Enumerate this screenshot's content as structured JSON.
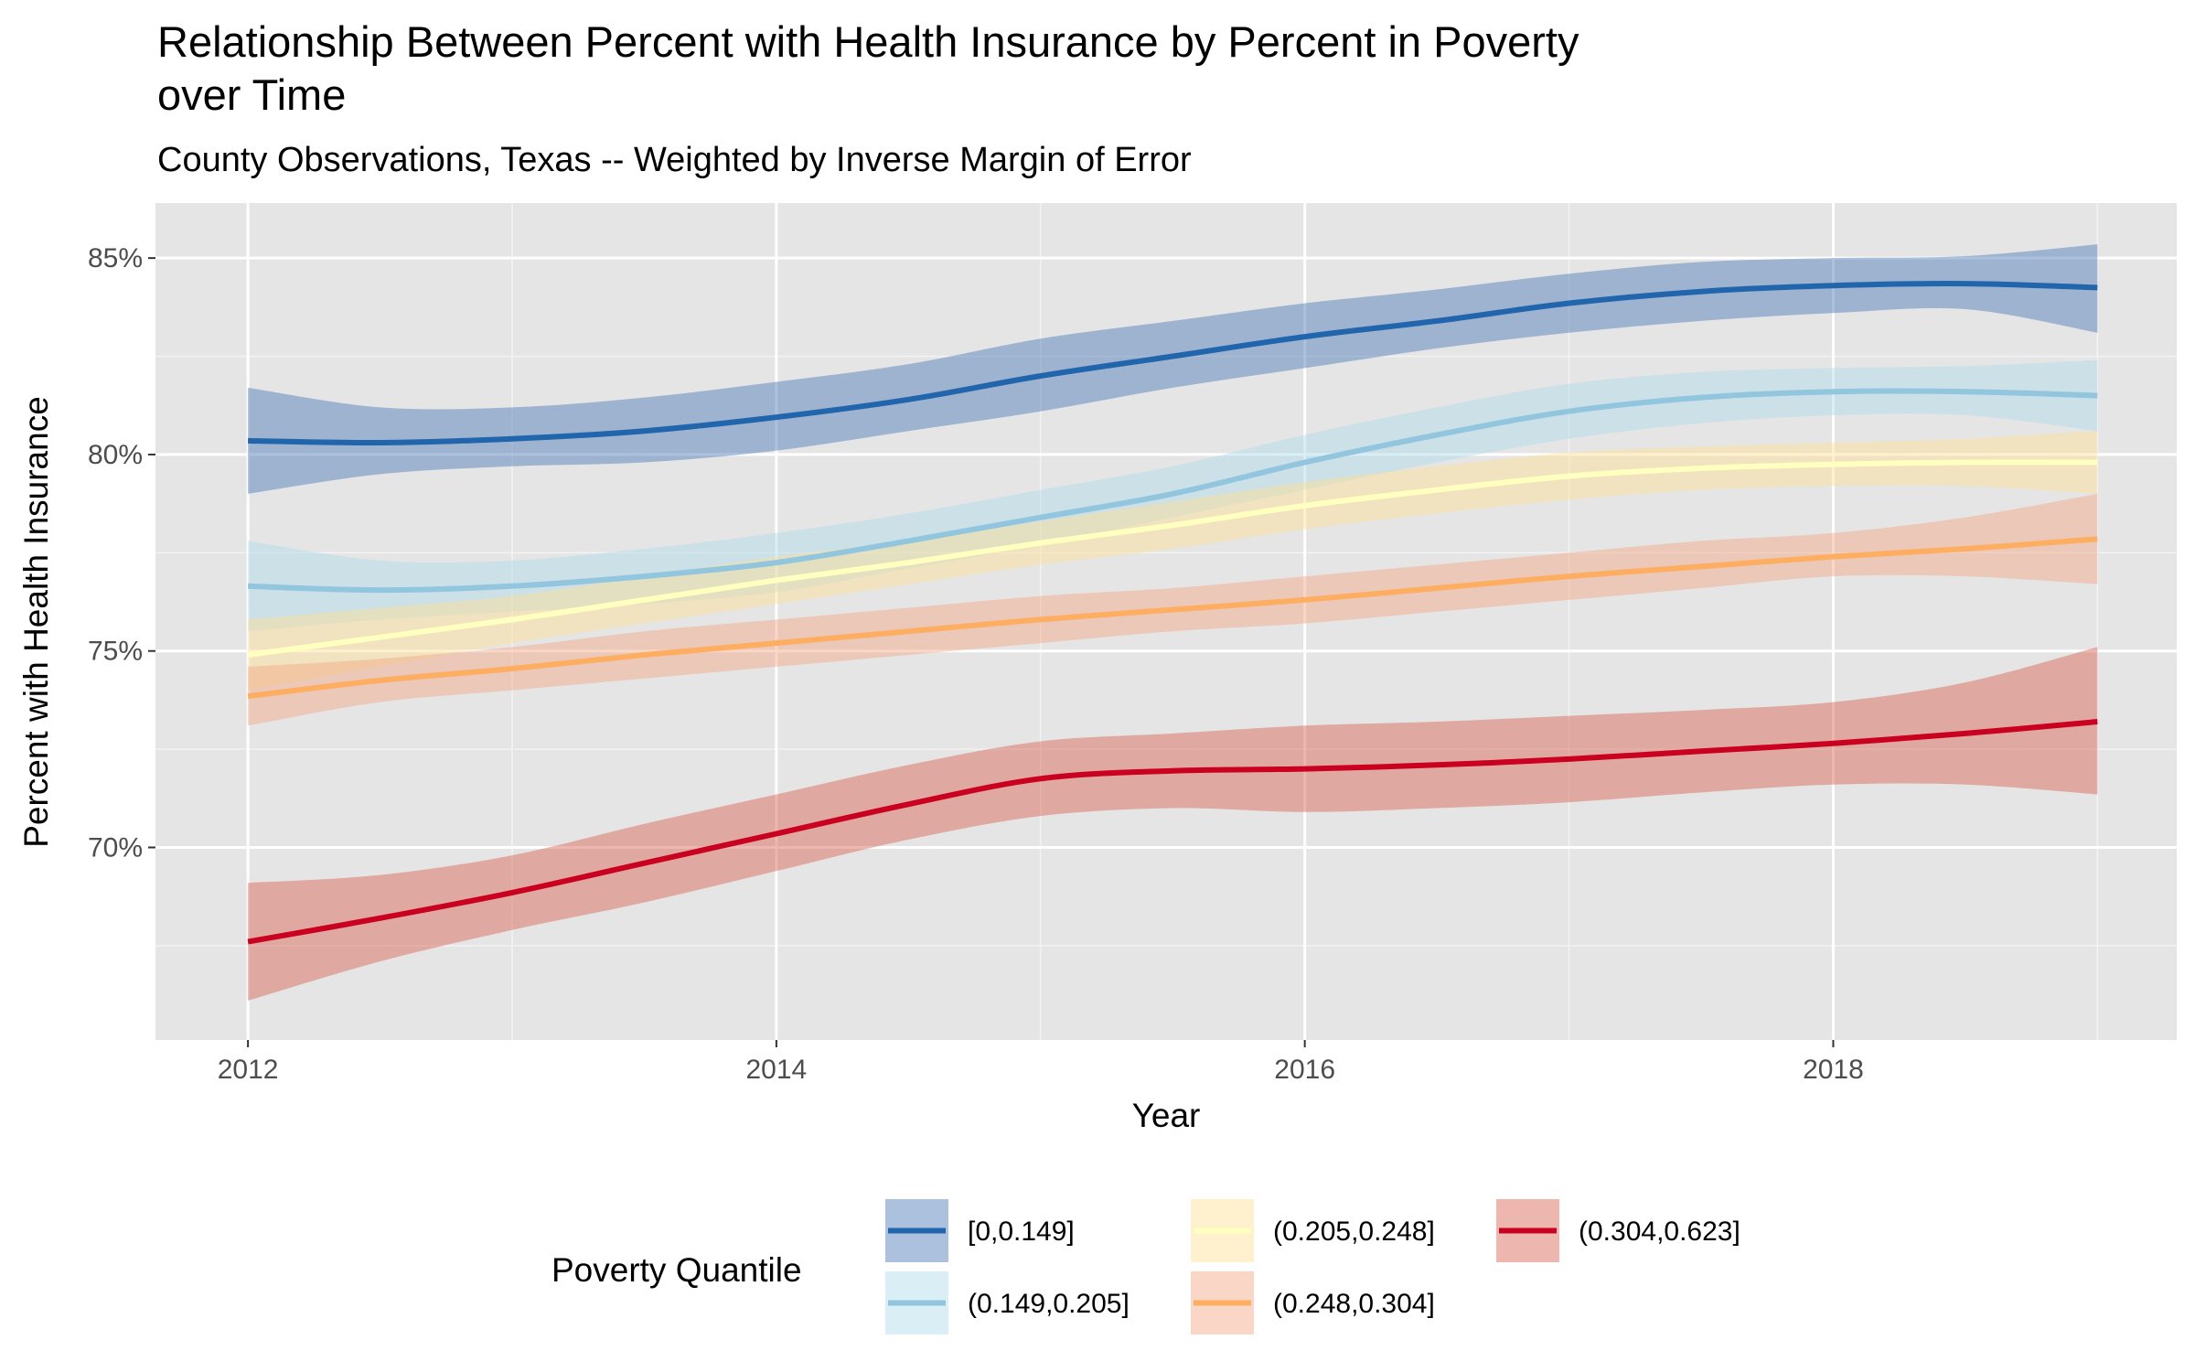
{
  "chart_data": {
    "type": "line",
    "title": "Relationship Between Percent with Health Insurance by Percent in Poverty over Time",
    "title_lines": [
      "Relationship Between Percent with Health Insurance by Percent in Poverty",
      "over Time"
    ],
    "subtitle": "County Observations, Texas -- Weighted by Inverse Margin of Error",
    "xlabel": "Year",
    "ylabel": "Percent with Health Insurance",
    "xlim": [
      2011.65,
      2019.3
    ],
    "ylim": [
      65.1,
      86.4
    ],
    "x_ticks": [
      2012,
      2014,
      2016,
      2018
    ],
    "x_tick_labels": [
      "2012",
      "2014",
      "2016",
      "2018"
    ],
    "y_ticks": [
      70,
      75,
      80,
      85
    ],
    "y_tick_labels": [
      "70%",
      "75%",
      "80%",
      "85%"
    ],
    "grid": true,
    "legend": {
      "title": "Poverty Quantile",
      "position": "bottom"
    },
    "x": [
      2012,
      2012.5,
      2013,
      2013.5,
      2014,
      2014.5,
      2015,
      2015.5,
      2016,
      2016.5,
      2017,
      2017.5,
      2018,
      2018.5,
      2019
    ],
    "series": [
      {
        "name": "[0,0.149]",
        "color": "#2166ac",
        "band_color": "#4575b4",
        "y": [
          80.35,
          80.3,
          80.4,
          80.6,
          80.95,
          81.4,
          82.0,
          82.5,
          83.0,
          83.4,
          83.85,
          84.15,
          84.3,
          84.35,
          84.25
        ],
        "lower": [
          79.0,
          79.5,
          79.7,
          79.8,
          80.1,
          80.6,
          81.1,
          81.7,
          82.2,
          82.7,
          83.1,
          83.4,
          83.6,
          83.7,
          83.1
        ],
        "upper": [
          81.7,
          81.2,
          81.2,
          81.45,
          81.85,
          82.3,
          82.95,
          83.4,
          83.85,
          84.2,
          84.6,
          84.9,
          85.0,
          85.05,
          85.35
        ]
      },
      {
        "name": "(0.149,0.205]",
        "color": "#92c5de",
        "band_color": "#abd9e9",
        "y": [
          76.65,
          76.55,
          76.65,
          76.9,
          77.25,
          77.8,
          78.4,
          79.0,
          79.8,
          80.5,
          81.1,
          81.45,
          81.6,
          81.6,
          81.5
        ],
        "lower": [
          75.5,
          75.8,
          76.0,
          76.2,
          76.5,
          77.1,
          77.7,
          78.4,
          79.1,
          79.8,
          80.4,
          80.8,
          81.0,
          81.0,
          80.6
        ],
        "upper": [
          77.8,
          77.3,
          77.3,
          77.6,
          78.0,
          78.5,
          79.1,
          79.7,
          80.5,
          81.2,
          81.8,
          82.1,
          82.2,
          82.25,
          82.4
        ]
      },
      {
        "name": "(0.205,0.248]",
        "color": "#ffffbf",
        "band_color": "#fee090",
        "y": [
          74.9,
          75.35,
          75.8,
          76.3,
          76.8,
          77.25,
          77.75,
          78.2,
          78.7,
          79.1,
          79.45,
          79.65,
          79.75,
          79.8,
          79.8
        ],
        "lower": [
          74.0,
          74.6,
          75.2,
          75.7,
          76.2,
          76.7,
          77.2,
          77.6,
          78.1,
          78.5,
          78.85,
          79.1,
          79.2,
          79.2,
          79.0
        ],
        "upper": [
          75.8,
          76.1,
          76.4,
          76.9,
          77.4,
          77.8,
          78.3,
          78.8,
          79.3,
          79.7,
          80.05,
          80.2,
          80.3,
          80.4,
          80.6
        ]
      },
      {
        "name": "(0.248,0.304]",
        "color": "#fdae61",
        "band_color": "#f4a582",
        "y": [
          73.85,
          74.25,
          74.55,
          74.9,
          75.2,
          75.5,
          75.8,
          76.05,
          76.3,
          76.6,
          76.9,
          77.15,
          77.4,
          77.6,
          77.85
        ],
        "lower": [
          73.1,
          73.7,
          74.0,
          74.3,
          74.6,
          74.9,
          75.2,
          75.5,
          75.7,
          76.0,
          76.3,
          76.6,
          76.9,
          76.9,
          76.7
        ],
        "upper": [
          74.6,
          74.8,
          75.1,
          75.5,
          75.8,
          76.1,
          76.4,
          76.6,
          76.9,
          77.2,
          77.5,
          77.8,
          78.0,
          78.4,
          79.0
        ]
      },
      {
        "name": "(0.304,0.623]",
        "color": "#ca0020",
        "band_color": "#d6604d",
        "y": [
          67.6,
          68.2,
          68.85,
          69.6,
          70.35,
          71.1,
          71.75,
          71.95,
          72.0,
          72.1,
          72.25,
          72.45,
          72.65,
          72.9,
          73.2
        ],
        "lower": [
          66.1,
          67.1,
          67.9,
          68.6,
          69.4,
          70.2,
          70.8,
          71.0,
          70.9,
          71.0,
          71.15,
          71.4,
          71.6,
          71.6,
          71.35
        ],
        "upper": [
          69.1,
          69.3,
          69.8,
          70.6,
          71.35,
          72.1,
          72.7,
          72.9,
          73.1,
          73.2,
          73.35,
          73.5,
          73.7,
          74.2,
          75.1
        ]
      }
    ]
  }
}
